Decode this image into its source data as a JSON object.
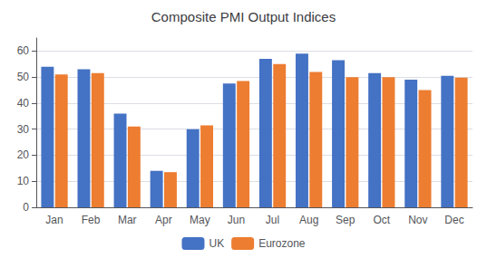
{
  "chart_data": {
    "type": "bar",
    "title": "Composite PMI Output Indices",
    "categories": [
      "Jan",
      "Feb",
      "Mar",
      "Apr",
      "May",
      "Jun",
      "Jul",
      "Aug",
      "Sep",
      "Oct",
      "Nov",
      "Dec"
    ],
    "series": [
      {
        "name": "UK",
        "color": "#4472C4",
        "values": [
          54,
          53,
          36,
          14,
          30,
          47.5,
          57,
          59,
          56.5,
          51.5,
          49,
          50.5
        ]
      },
      {
        "name": "Eurozone",
        "color": "#ED7D31",
        "values": [
          51,
          51.5,
          31,
          13.5,
          31.5,
          48.5,
          55,
          52,
          50,
          50,
          45,
          49.8
        ]
      }
    ],
    "ylim": [
      0,
      65
    ],
    "yticks": [
      0,
      10,
      20,
      30,
      40,
      50,
      60
    ],
    "grid": true,
    "legend": "bottom"
  }
}
